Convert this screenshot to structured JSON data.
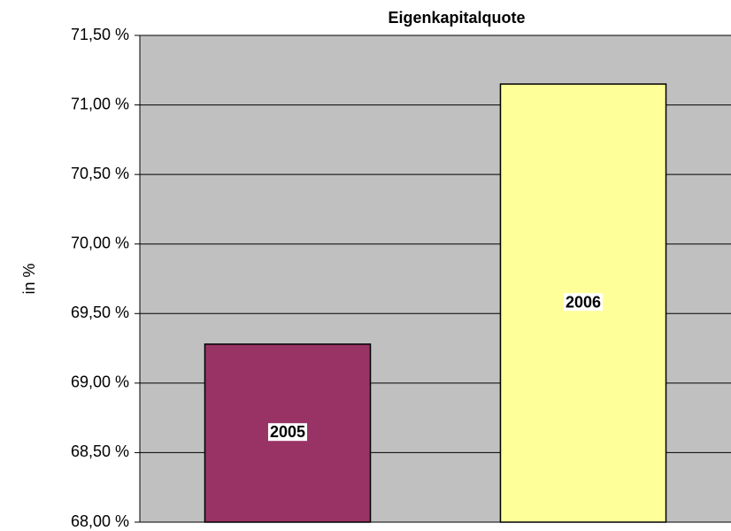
{
  "chart_data": {
    "type": "bar",
    "title": "Eigenkapitalquote",
    "y_label": "in %",
    "categories": [
      "2005",
      "2006"
    ],
    "values": [
      69.28,
      71.15
    ],
    "colors": [
      "#993366",
      "#ffff99"
    ],
    "ylim": [
      68,
      71.5
    ],
    "yticks": [
      {
        "value": 68,
        "label": "68,00 %"
      },
      {
        "value": 68.5,
        "label": "68,50 %"
      },
      {
        "value": 69,
        "label": "69,00 %"
      },
      {
        "value": 69.5,
        "label": "69,50 %"
      },
      {
        "value": 70,
        "label": "70,00 %"
      },
      {
        "value": 70.5,
        "label": "70,50 %"
      },
      {
        "value": 71,
        "label": "71,00 %"
      },
      {
        "value": 71.5,
        "label": "71,50 %"
      }
    ],
    "grid": true
  }
}
